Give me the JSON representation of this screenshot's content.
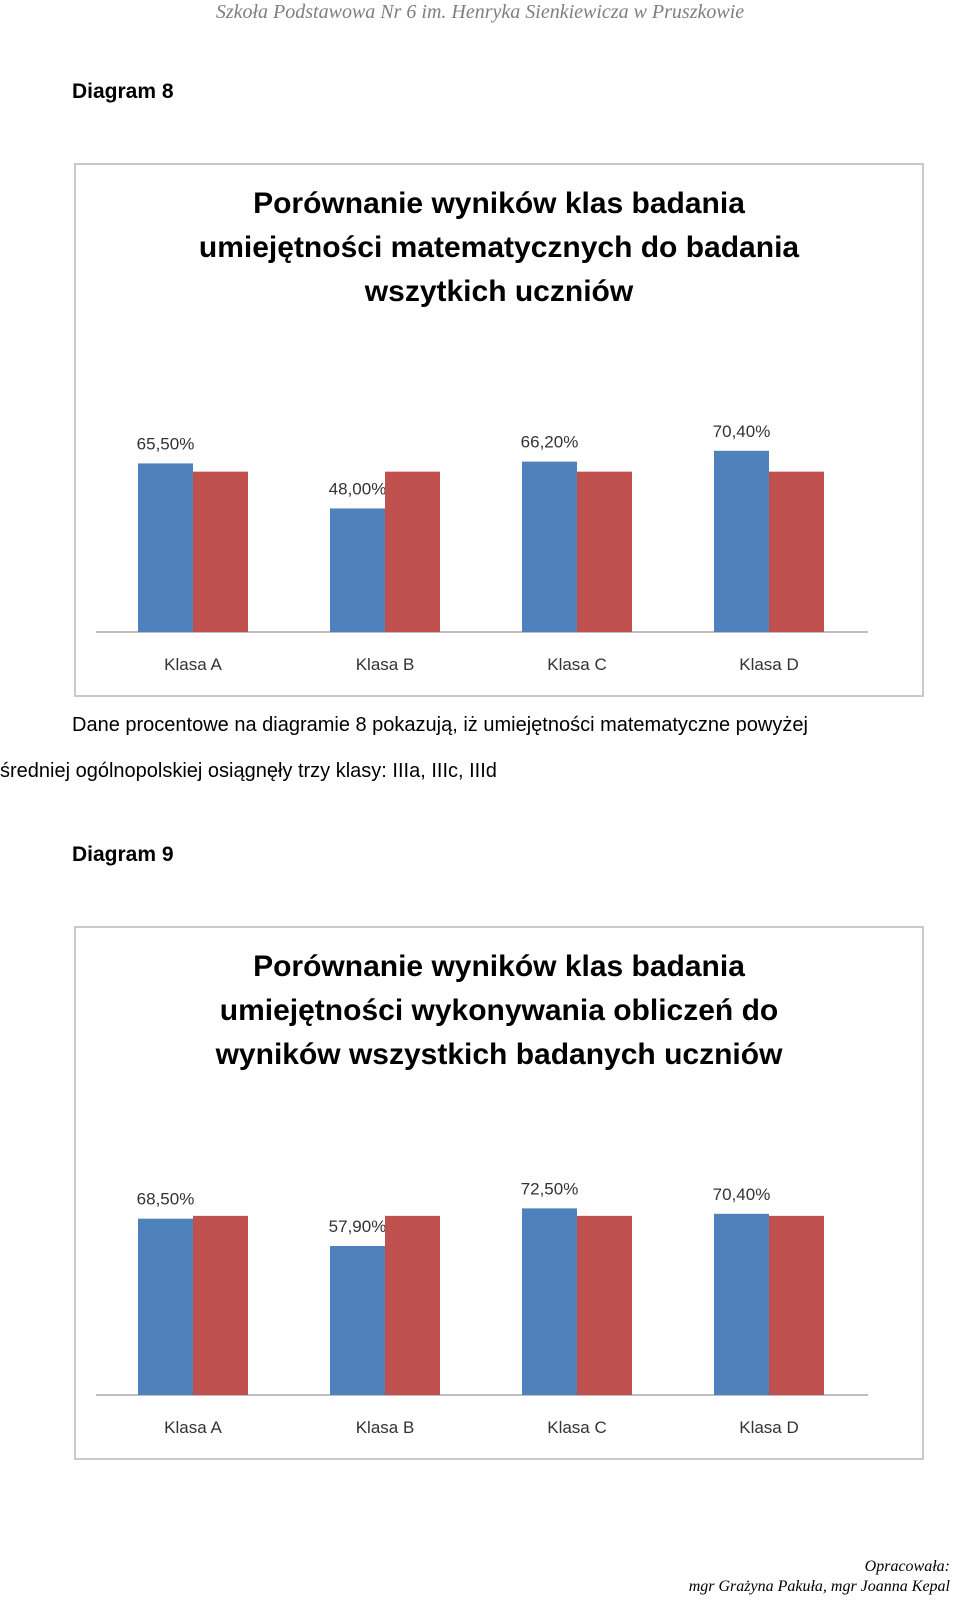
{
  "header": "Szkoła Podstawowa Nr 6 im. Henryka Sienkiewicza w Pruszkowie",
  "diagram8": {
    "label": "Diagram 8",
    "chart_data": {
      "type": "bar",
      "title": [
        "Porównanie wyników klas badania",
        "umiejętności matematycznych do badania",
        "wszytkich uczniów"
      ],
      "categories": [
        "Klasa A",
        "Klasa B",
        "Klasa C",
        "Klasa D"
      ],
      "series": [
        {
          "values": [
            65.5,
            48.0,
            66.2,
            70.4
          ],
          "labels": [
            "65,50%",
            "48,00%",
            "66,20%",
            "70,40%"
          ],
          "color": "#4f81bd"
        },
        {
          "values": [
            62.3,
            62.3,
            62.3,
            62.3
          ],
          "color": "#c0504d"
        }
      ],
      "ylim": [
        0,
        100
      ],
      "grid": false,
      "legend": "none"
    }
  },
  "paragraph": {
    "line1": "Dane procentowe na diagramie 8 pokazują, iż umiejętności matematyczne powyżej",
    "line2": "średniej ogólnopolskiej osiągnęły trzy klasy: IIIa, IIIc, IIId"
  },
  "diagram9": {
    "label": "Diagram 9",
    "chart_data": {
      "type": "bar",
      "title": [
        "Porównanie wyników klas badania",
        "umiejętności wykonywania obliczeń do",
        "wyników wszystkich badanych uczniów"
      ],
      "categories": [
        "Klasa A",
        "Klasa B",
        "Klasa C",
        "Klasa D"
      ],
      "series": [
        {
          "values": [
            68.5,
            57.9,
            72.5,
            70.4
          ],
          "labels": [
            "68,50%",
            "57,90%",
            "72,50%",
            "70,40%"
          ],
          "color": "#4f81bd"
        },
        {
          "values": [
            69.6,
            69.6,
            69.6,
            69.6
          ],
          "color": "#c0504d"
        }
      ],
      "ylim": [
        0,
        100
      ],
      "grid": false,
      "legend": "none"
    }
  },
  "footer": {
    "line1": "Opracowała:",
    "line2": "mgr Grażyna Pakuła, mgr Joanna Kepal"
  }
}
